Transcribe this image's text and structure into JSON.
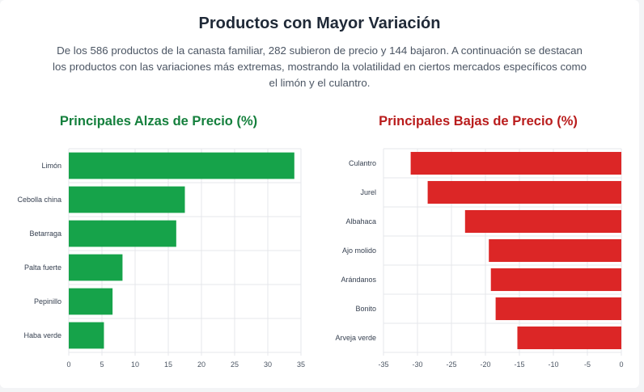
{
  "title": "Productos con Mayor Variación",
  "description": "De los 586 productos de la canasta familiar, 282 subieron de precio y 144 bajaron. A continuación se destacan los productos con las variaciones más extremas, mostrando la volatilidad en ciertos mercados específicos como el limón y el culantro.",
  "colors": {
    "up": "#16a34a",
    "down": "#dc2626",
    "title": "#1f2937",
    "grid": "#e5e7eb"
  },
  "chart_data": [
    {
      "type": "bar",
      "orientation": "horizontal",
      "title": "Principales Alzas de Precio (%)",
      "categories": [
        "Limón",
        "Cebolla china",
        "Betarraga",
        "Palta fuerte",
        "Pepinillo",
        "Haba verde"
      ],
      "values": [
        34.0,
        17.5,
        16.2,
        8.1,
        6.6,
        5.3
      ],
      "xlim": [
        0,
        35
      ],
      "xticks": [
        "0",
        "5",
        "10",
        "15",
        "20",
        "25",
        "30",
        "35"
      ],
      "grid": true,
      "color": "#16a34a"
    },
    {
      "type": "bar",
      "orientation": "horizontal",
      "title": "Principales Bajas de Precio (%)",
      "categories": [
        "Culantro",
        "Jurel",
        "Albahaca",
        "Ajo molido",
        "Arándanos",
        "Bonito",
        "Arveja verde"
      ],
      "values": [
        -31.0,
        -28.5,
        -23.0,
        -19.5,
        -19.2,
        -18.5,
        -15.3
      ],
      "xlim": [
        -35,
        0
      ],
      "xticks": [
        "-35",
        "-30",
        "-25",
        "-20",
        "-15",
        "-10",
        "-5",
        "0"
      ],
      "grid": true,
      "color": "#dc2626"
    }
  ]
}
